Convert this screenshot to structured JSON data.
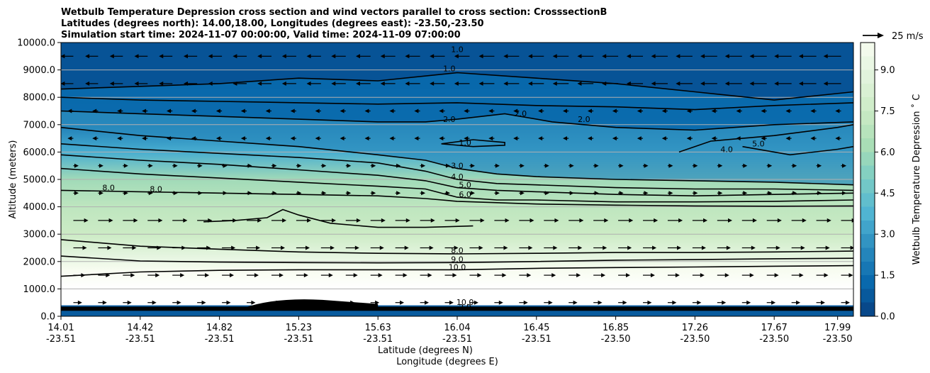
{
  "chart_data": {
    "type": "heatmap",
    "title_lines": [
      "Wetbulb Temperature Depression cross section and wind vectors parallel to cross section: CrosssectionB",
      "Latitudes (degrees north): 14.00,18.00, Longitudes (degrees east): -23.50,-23.50",
      "Simulation start time: 2024-11-07 00:00:00, Valid time: 2024-11-09 07:00:00"
    ],
    "ylabel": "Altitude (meters)",
    "xlabel_lat": "Latitude (degrees N)",
    "xlabel_lon": "Longitude (degrees E)",
    "ylim": [
      0,
      10000
    ],
    "y_ticks": [
      "0.0",
      "1000.0",
      "2000.0",
      "3000.0",
      "4000.0",
      "5000.0",
      "6000.0",
      "7000.0",
      "8000.0",
      "9000.0",
      "10000.0"
    ],
    "x_ticks": [
      {
        "lat": "14.01",
        "lon": "-23.51",
        "pos": 0.0
      },
      {
        "lat": "14.42",
        "lon": "-23.51",
        "pos": 0.1
      },
      {
        "lat": "14.82",
        "lon": "-23.51",
        "pos": 0.2
      },
      {
        "lat": "15.23",
        "lon": "-23.51",
        "pos": 0.3
      },
      {
        "lat": "15.63",
        "lon": "-23.51",
        "pos": 0.4
      },
      {
        "lat": "16.04",
        "lon": "-23.51",
        "pos": 0.5
      },
      {
        "lat": "16.45",
        "lon": "-23.51",
        "pos": 0.6
      },
      {
        "lat": "16.85",
        "lon": "-23.50",
        "pos": 0.7
      },
      {
        "lat": "17.26",
        "lon": "-23.50",
        "pos": 0.8
      },
      {
        "lat": "17.67",
        "lon": "-23.50",
        "pos": 0.9
      },
      {
        "lat": "17.99",
        "lon": "-23.50",
        "pos": 0.98
      }
    ],
    "colorbar": {
      "label": "Wetbulb Temperature Depression ˚ C",
      "range": [
        0,
        10
      ],
      "ticks": [
        "0.0",
        "1.5",
        "3.0",
        "4.5",
        "6.0",
        "7.5",
        "9.0"
      ],
      "colormap": "GnBu_r",
      "levels": 20
    },
    "wind_key": "25 m/s",
    "field_profile": [
      {
        "alt": 0,
        "value": 10.5
      },
      {
        "alt": 300,
        "value": 10.5
      },
      {
        "alt": 1000,
        "value": 10.8
      },
      {
        "alt": 1700,
        "value": 10.0
      },
      {
        "alt": 2200,
        "value": 9.0
      },
      {
        "alt": 3000,
        "value": 7.5
      },
      {
        "alt": 4000,
        "value": 7.0
      },
      {
        "alt": 5000,
        "value": 6.0
      },
      {
        "alt": 6000,
        "value": 3.5
      },
      {
        "alt": 7000,
        "value": 2.0
      },
      {
        "alt": 8000,
        "value": 1.5
      },
      {
        "alt": 9000,
        "value": 0.8
      },
      {
        "alt": 10000,
        "value": 0.6
      }
    ],
    "contour_labels": [
      {
        "text": "1.0",
        "x": 0.5,
        "alt": 9650
      },
      {
        "text": "1.0",
        "x": 0.49,
        "alt": 8950
      },
      {
        "text": "2.0",
        "x": 0.49,
        "alt": 7100
      },
      {
        "text": "2.0",
        "x": 0.58,
        "alt": 7300
      },
      {
        "text": "2.0",
        "x": 0.66,
        "alt": 7100
      },
      {
        "text": "1.0",
        "x": 0.51,
        "alt": 6250
      },
      {
        "text": "3.0",
        "x": 0.5,
        "alt": 5400
      },
      {
        "text": "4.0",
        "x": 0.5,
        "alt": 5000
      },
      {
        "text": "5.0",
        "x": 0.51,
        "alt": 4700
      },
      {
        "text": "6.0",
        "x": 0.51,
        "alt": 4350
      },
      {
        "text": "4.0",
        "x": 0.84,
        "alt": 6000
      },
      {
        "text": "5.0",
        "x": 0.88,
        "alt": 6200
      },
      {
        "text": "8.0",
        "x": 0.06,
        "alt": 4600
      },
      {
        "text": "8.0",
        "x": 0.12,
        "alt": 4550
      },
      {
        "text": "8.0",
        "x": 0.5,
        "alt": 2300
      },
      {
        "text": "9.0",
        "x": 0.5,
        "alt": 1980
      },
      {
        "text": "10.0",
        "x": 0.5,
        "alt": 1700
      },
      {
        "text": "10.0",
        "x": 0.51,
        "alt": 420
      },
      {
        "text": "2.0",
        "x": 0.51,
        "alt": 230
      },
      {
        "text": "2.0",
        "x": 0.38,
        "alt": 230
      }
    ],
    "contour_lines": [
      {
        "level": "10.0",
        "pts": [
          [
            0.0,
            1460
          ],
          [
            0.1,
            1620
          ],
          [
            0.2,
            1680
          ],
          [
            0.3,
            1700
          ],
          [
            0.4,
            1700
          ],
          [
            0.5,
            1700
          ],
          [
            0.6,
            1750
          ],
          [
            0.7,
            1780
          ],
          [
            0.8,
            1800
          ],
          [
            0.9,
            1830
          ],
          [
            1.0,
            1850
          ]
        ]
      },
      {
        "level": "9.0",
        "pts": [
          [
            0.0,
            2200
          ],
          [
            0.1,
            2020
          ],
          [
            0.2,
            1980
          ],
          [
            0.3,
            1960
          ],
          [
            0.4,
            1950
          ],
          [
            0.5,
            1960
          ],
          [
            0.6,
            2000
          ],
          [
            0.7,
            2050
          ],
          [
            0.8,
            2070
          ],
          [
            0.9,
            2100
          ],
          [
            1.0,
            2120
          ]
        ]
      },
      {
        "level": "8.0",
        "pts": [
          [
            0.0,
            2800
          ],
          [
            0.1,
            2560
          ],
          [
            0.2,
            2450
          ],
          [
            0.3,
            2350
          ],
          [
            0.4,
            2300
          ],
          [
            0.5,
            2280
          ],
          [
            0.6,
            2300
          ],
          [
            0.7,
            2330
          ],
          [
            0.8,
            2330
          ],
          [
            0.9,
            2350
          ],
          [
            1.0,
            2380
          ]
        ]
      },
      {
        "level": "8.0",
        "pts": [
          [
            0.18,
            3450
          ],
          [
            0.22,
            3500
          ],
          [
            0.26,
            3600
          ],
          [
            0.28,
            3900
          ],
          [
            0.3,
            3700
          ],
          [
            0.34,
            3400
          ],
          [
            0.4,
            3250
          ],
          [
            0.46,
            3250
          ],
          [
            0.52,
            3300
          ]
        ]
      },
      {
        "level": "7.0",
        "pts": [
          [
            0.0,
            4600
          ],
          [
            0.1,
            4550
          ],
          [
            0.2,
            4500
          ],
          [
            0.3,
            4450
          ],
          [
            0.4,
            4400
          ],
          [
            0.46,
            4300
          ],
          [
            0.5,
            4200
          ],
          [
            0.55,
            4150
          ],
          [
            0.6,
            4100
          ],
          [
            0.7,
            4060
          ],
          [
            0.8,
            4030
          ],
          [
            0.9,
            4020
          ],
          [
            1.0,
            4030
          ]
        ]
      },
      {
        "level": "6.0",
        "pts": [
          [
            0.0,
            5400
          ],
          [
            0.1,
            5200
          ],
          [
            0.2,
            5050
          ],
          [
            0.3,
            4900
          ],
          [
            0.4,
            4750
          ],
          [
            0.46,
            4650
          ],
          [
            0.5,
            4350
          ],
          [
            0.55,
            4250
          ],
          [
            0.6,
            4250
          ],
          [
            0.7,
            4180
          ],
          [
            0.8,
            4180
          ],
          [
            0.9,
            4200
          ],
          [
            1.0,
            4250
          ]
        ]
      },
      {
        "level": "5.0",
        "pts": [
          [
            0.0,
            5900
          ],
          [
            0.1,
            5700
          ],
          [
            0.2,
            5550
          ],
          [
            0.3,
            5350
          ],
          [
            0.4,
            5150
          ],
          [
            0.46,
            4950
          ],
          [
            0.5,
            4700
          ],
          [
            0.55,
            4600
          ],
          [
            0.6,
            4550
          ],
          [
            0.7,
            4450
          ],
          [
            0.8,
            4400
          ],
          [
            0.9,
            4450
          ],
          [
            1.0,
            4500
          ]
        ]
      },
      {
        "level": "4.0",
        "pts": [
          [
            0.0,
            6300
          ],
          [
            0.1,
            6100
          ],
          [
            0.2,
            5950
          ],
          [
            0.3,
            5800
          ],
          [
            0.4,
            5600
          ],
          [
            0.46,
            5300
          ],
          [
            0.5,
            5000
          ],
          [
            0.55,
            4850
          ],
          [
            0.6,
            4800
          ],
          [
            0.7,
            4700
          ],
          [
            0.8,
            4650
          ],
          [
            0.9,
            4650
          ],
          [
            1.0,
            4600
          ]
        ]
      },
      {
        "level": "3.0",
        "pts": [
          [
            0.0,
            6900
          ],
          [
            0.1,
            6600
          ],
          [
            0.2,
            6400
          ],
          [
            0.3,
            6200
          ],
          [
            0.4,
            5900
          ],
          [
            0.46,
            5700
          ],
          [
            0.5,
            5400
          ],
          [
            0.55,
            5200
          ],
          [
            0.6,
            5100
          ],
          [
            0.7,
            5000
          ],
          [
            0.8,
            4950
          ],
          [
            0.9,
            4900
          ],
          [
            1.0,
            4800
          ]
        ]
      },
      {
        "level": "2.0",
        "pts": [
          [
            0.0,
            7500
          ],
          [
            0.1,
            7400
          ],
          [
            0.2,
            7300
          ],
          [
            0.3,
            7200
          ],
          [
            0.4,
            7100
          ],
          [
            0.46,
            7100
          ],
          [
            0.5,
            7200
          ],
          [
            0.56,
            7400
          ],
          [
            0.62,
            7100
          ],
          [
            0.7,
            6900
          ],
          [
            0.8,
            6800
          ],
          [
            0.9,
            7000
          ],
          [
            1.0,
            7100
          ]
        ]
      },
      {
        "level": "1.5",
        "pts": [
          [
            0.0,
            8000
          ],
          [
            0.1,
            7900
          ],
          [
            0.2,
            7850
          ],
          [
            0.3,
            7800
          ],
          [
            0.4,
            7750
          ],
          [
            0.5,
            7800
          ],
          [
            0.6,
            7700
          ],
          [
            0.7,
            7650
          ],
          [
            0.8,
            7550
          ],
          [
            0.9,
            7700
          ],
          [
            1.0,
            7800
          ]
        ]
      },
      {
        "level": "1.0",
        "pts": [
          [
            0.0,
            8300
          ],
          [
            0.1,
            8400
          ],
          [
            0.2,
            8500
          ],
          [
            0.3,
            8700
          ],
          [
            0.4,
            8600
          ],
          [
            0.5,
            8900
          ],
          [
            0.6,
            8700
          ],
          [
            0.7,
            8500
          ],
          [
            0.8,
            8200
          ],
          [
            0.9,
            7900
          ],
          [
            1.0,
            8200
          ]
        ]
      },
      {
        "level": "1.0",
        "pts": [
          [
            0.48,
            6300
          ],
          [
            0.52,
            6200
          ],
          [
            0.56,
            6250
          ],
          [
            0.56,
            6350
          ],
          [
            0.52,
            6450
          ],
          [
            0.48,
            6300
          ]
        ]
      },
      {
        "level": "4.0",
        "pts": [
          [
            0.78,
            6000
          ],
          [
            0.82,
            6400
          ],
          [
            0.9,
            6600
          ],
          [
            0.98,
            6900
          ],
          [
            1.0,
            7000
          ]
        ]
      },
      {
        "level": "5.0",
        "pts": [
          [
            0.86,
            6200
          ],
          [
            0.92,
            5900
          ],
          [
            0.98,
            6100
          ],
          [
            1.0,
            6200
          ]
        ]
      }
    ]
  }
}
